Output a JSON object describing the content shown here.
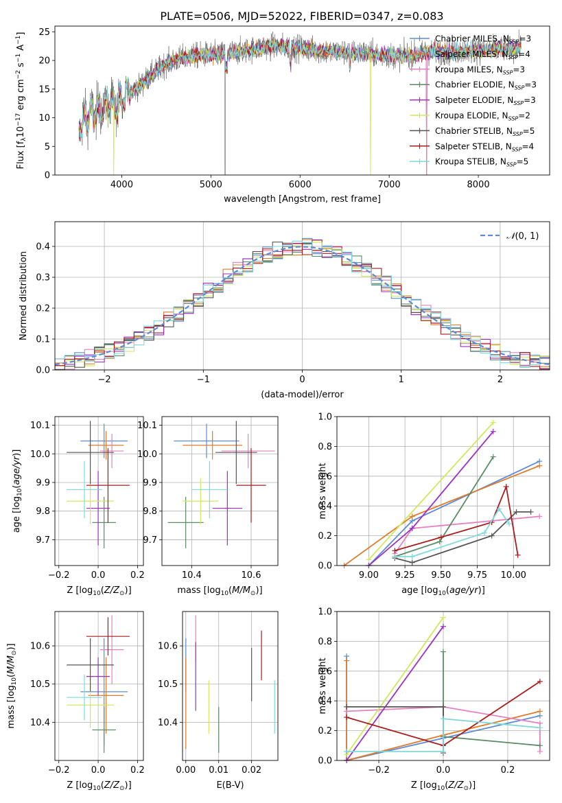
{
  "figure": {
    "title": "PLATE=0506, MJD=52022, FIBERID=0347, z=0.083"
  },
  "series_names": [
    "Chabrier MILES, N_SSP=3",
    "Salpeter MILES, N_SSP=4",
    "Kroupa MILES, N_SSP=3",
    "Chabrier ELODIE, N_SSP=3",
    "Salpeter ELODIE, N_SSP=3",
    "Kroupa ELODIE, N_SSP=2",
    "Chabrier STELIB, N_SSP=5",
    "Salpeter STELIB, N_SSP=4",
    "Kroupa STELIB, N_SSP=5"
  ],
  "colors": [
    "#5b8bd6",
    "#e07b28",
    "#e67fbf",
    "#5a8a66",
    "#9c2fbf",
    "#cfe85a",
    "#555555",
    "#a81c1c",
    "#7fd9dc"
  ],
  "chart_data": [
    {
      "id": "spectrum",
      "type": "line",
      "xlabel": "wavelength [Angstrom, rest frame]",
      "ylabel": "Flux [f_λ 10^-17 erg cm^-2 s^-1 A^-1]",
      "xlim": [
        3250,
        8800
      ],
      "ylim": [
        0,
        26
      ],
      "xticks": [
        4000,
        5000,
        6000,
        7000,
        8000
      ],
      "yticks": [
        0,
        5,
        10,
        15,
        20,
        25
      ],
      "legend": "right",
      "spectrum": {
        "x": [
          3520,
          3650,
          3800,
          3900,
          3950,
          4050,
          4200,
          4300,
          4500,
          4700,
          4900,
          5100,
          5300,
          5500,
          5700,
          5900,
          6100,
          6300,
          6500,
          6700,
          6900,
          7100,
          7300,
          7450,
          7700,
          8000,
          8300,
          8480
        ],
        "y": [
          8.5,
          10.5,
          11.5,
          12.0,
          12.2,
          14.0,
          15.5,
          17.0,
          19.5,
          20.5,
          21.0,
          21.0,
          21.5,
          22.0,
          22.5,
          22.3,
          22.0,
          21.5,
          21.5,
          21.3,
          21.0,
          20.8,
          21.0,
          21.5,
          21.5,
          21.8,
          22.0,
          22.3
        ]
      },
      "dropouts": [
        {
          "series": 0,
          "x": 7420
        },
        {
          "series": 1,
          "x": 7420
        },
        {
          "series": 2,
          "x": 7420
        },
        {
          "series": 5,
          "x": 6790
        },
        {
          "series": 5,
          "x": 3910
        },
        {
          "series": 6,
          "x": 5160
        },
        {
          "series": 7,
          "x": 3510
        }
      ]
    },
    {
      "id": "residuals",
      "type": "line",
      "xlabel": "(data-model)/error",
      "ylabel": "Normed distribution",
      "xlim": [
        -2.5,
        2.5
      ],
      "ylim": [
        0,
        0.48
      ],
      "xticks": [
        -2,
        -1,
        0,
        1,
        2
      ],
      "yticks": [
        0.0,
        0.1,
        0.2,
        0.3,
        0.4
      ],
      "legend_label": "N(0,1)",
      "legend": "top-right",
      "grid": true
    },
    {
      "id": "age_vs_Z",
      "type": "scatter",
      "xlabel": "Z [log10(Z/Z_sun)]",
      "ylabel": "age [log10(age/yr)]",
      "xlim": [
        -0.22,
        0.23
      ],
      "ylim": [
        9.61,
        10.13
      ],
      "xticks": [
        -0.2,
        0.0,
        0.2
      ],
      "yticks": [
        9.7,
        9.8,
        9.9,
        10.0,
        10.1
      ],
      "grid": true,
      "points": [
        {
          "series": 0,
          "x": 0.03,
          "xerr": 0.12,
          "y": 10.045,
          "yerr": 0.06
        },
        {
          "series": 1,
          "x": 0.04,
          "xerr": 0.09,
          "y": 10.03,
          "yerr": 0.05
        },
        {
          "series": 2,
          "x": 0.07,
          "xerr": 0.06,
          "y": 10.01,
          "yerr": 0.06
        },
        {
          "series": 3,
          "x": 0.03,
          "xerr": 0.06,
          "y": 9.76,
          "yerr": 0.09
        },
        {
          "series": 4,
          "x": 0.0,
          "xerr": 0.06,
          "y": 9.81,
          "yerr": 0.13
        },
        {
          "series": 5,
          "x": -0.04,
          "xerr": 0.12,
          "y": 9.835,
          "yerr": 0.08
        },
        {
          "series": 6,
          "x": -0.04,
          "xerr": 0.12,
          "y": 10.005,
          "yerr": 0.11
        },
        {
          "series": 7,
          "x": 0.05,
          "xerr": 0.11,
          "y": 9.89,
          "yerr": 0.13
        },
        {
          "series": 8,
          "x": -0.07,
          "xerr": 0.09,
          "y": 9.875,
          "yerr": 0.1
        }
      ]
    },
    {
      "id": "age_vs_mass",
      "type": "scatter",
      "xlabel": "mass [log10(M/M_sun)]",
      "xlim": [
        10.3,
        10.69
      ],
      "ylim": [
        9.61,
        10.13
      ],
      "xticks": [
        10.4,
        10.6
      ],
      "yticks": [
        9.7,
        9.8,
        9.9,
        10.0,
        10.1
      ],
      "grid": true,
      "points": [
        {
          "series": 0,
          "x": 10.45,
          "xerr": 0.11,
          "y": 10.045,
          "yerr": 0.06
        },
        {
          "series": 1,
          "x": 10.47,
          "xerr": 0.1,
          "y": 10.03,
          "yerr": 0.05
        },
        {
          "series": 2,
          "x": 10.59,
          "xerr": 0.09,
          "y": 10.01,
          "yerr": 0.06
        },
        {
          "series": 3,
          "x": 10.38,
          "xerr": 0.06,
          "y": 9.76,
          "yerr": 0.09
        },
        {
          "series": 4,
          "x": 10.52,
          "xerr": 0.05,
          "y": 9.81,
          "yerr": 0.13
        },
        {
          "series": 5,
          "x": 10.43,
          "xerr": 0.06,
          "y": 9.835,
          "yerr": 0.08
        },
        {
          "series": 6,
          "x": 10.55,
          "xerr": 0.07,
          "y": 10.005,
          "yerr": 0.11
        },
        {
          "series": 7,
          "x": 10.6,
          "xerr": 0.05,
          "y": 9.89,
          "yerr": 0.13
        },
        {
          "series": 8,
          "x": 10.46,
          "xerr": 0.06,
          "y": 9.875,
          "yerr": 0.1
        }
      ]
    },
    {
      "id": "massweight_vs_age",
      "type": "line",
      "xlabel": "age [log10(age/yr)]",
      "ylabel": "mass weight",
      "xlim": [
        8.78,
        10.25
      ],
      "ylim": [
        0,
        1.0
      ],
      "xticks": [
        9.0,
        9.25,
        9.5,
        9.75,
        10.0
      ],
      "yticks": [
        0.0,
        0.2,
        0.4,
        0.6,
        0.8,
        1.0
      ],
      "grid": true,
      "series": [
        {
          "series": 0,
          "x": [
            9.0,
            9.3,
            10.18
          ],
          "y": [
            0.0,
            0.3,
            0.7
          ]
        },
        {
          "series": 1,
          "x": [
            8.83,
            9.3,
            10.18
          ],
          "y": [
            0.0,
            0.33,
            0.67
          ]
        },
        {
          "series": 2,
          "x": [
            9.18,
            9.3,
            10.18
          ],
          "y": [
            0.08,
            0.25,
            0.33
          ]
        },
        {
          "series": 3,
          "x": [
            9.18,
            9.49,
            9.86
          ],
          "y": [
            0.06,
            0.16,
            0.73
          ]
        },
        {
          "series": 4,
          "x": [
            9.0,
            9.3,
            9.86
          ],
          "y": [
            0.0,
            0.25,
            0.9
          ]
        },
        {
          "series": 5,
          "x": [
            9.0,
            9.86
          ],
          "y": [
            0.04,
            0.96
          ]
        },
        {
          "series": 6,
          "x": [
            9.18,
            9.3,
            9.85,
            10.02,
            10.12
          ],
          "y": [
            0.05,
            0.02,
            0.2,
            0.36,
            0.36
          ]
        },
        {
          "series": 7,
          "x": [
            9.18,
            9.5,
            9.85,
            9.95,
            10.03
          ],
          "y": [
            0.1,
            0.19,
            0.29,
            0.53,
            0.07
          ]
        },
        {
          "series": 8,
          "x": [
            9.18,
            9.3,
            9.8,
            9.9,
            9.97
          ],
          "y": [
            0.06,
            0.06,
            0.22,
            0.38,
            0.28
          ]
        }
      ]
    },
    {
      "id": "mass_vs_Z",
      "type": "scatter",
      "xlabel": "Z [log10(Z/Z_sun)]",
      "ylabel": "mass [log10(M/M_sun)]",
      "xlim": [
        -0.22,
        0.23
      ],
      "ylim": [
        10.3,
        10.69
      ],
      "xticks": [
        -0.2,
        0.0,
        0.2
      ],
      "yticks": [
        10.4,
        10.5,
        10.6
      ],
      "grid": true,
      "points": [
        {
          "series": 0,
          "x": 0.03,
          "xerr": 0.12,
          "y": 10.48,
          "yerr": 0.14
        },
        {
          "series": 1,
          "x": 0.04,
          "xerr": 0.09,
          "y": 10.47,
          "yerr": 0.1
        },
        {
          "series": 2,
          "x": 0.07,
          "xerr": 0.06,
          "y": 10.59,
          "yerr": 0.09
        },
        {
          "series": 3,
          "x": 0.03,
          "xerr": 0.06,
          "y": 10.38,
          "yerr": 0.06
        },
        {
          "series": 4,
          "x": 0.0,
          "xerr": 0.06,
          "y": 10.52,
          "yerr": 0.05
        },
        {
          "series": 5,
          "x": -0.04,
          "xerr": 0.12,
          "y": 10.445,
          "yerr": 0.06
        },
        {
          "series": 6,
          "x": -0.04,
          "xerr": 0.12,
          "y": 10.55,
          "yerr": 0.07
        },
        {
          "series": 7,
          "x": 0.05,
          "xerr": 0.11,
          "y": 10.625,
          "yerr": 0.05
        },
        {
          "series": 8,
          "x": -0.07,
          "xerr": 0.09,
          "y": 10.465,
          "yerr": 0.06
        }
      ]
    },
    {
      "id": "ebv_vs_mass",
      "type": "scatter",
      "xlabel": "E(B-V)",
      "xlim": [
        -0.001,
        0.028
      ],
      "ylim": [
        10.3,
        10.69
      ],
      "xticks": [
        0.0,
        0.01,
        0.02
      ],
      "yticks": [
        10.4,
        10.5,
        10.6
      ],
      "grid": true,
      "points": [
        {
          "series": 0,
          "x": 0.0,
          "y": 10.55,
          "yerr": 0.07
        },
        {
          "series": 1,
          "x": 0.0,
          "y": 10.45,
          "yerr": 0.12
        },
        {
          "series": 2,
          "x": 0.003,
          "y": 10.62,
          "yerr": 0.06
        },
        {
          "series": 3,
          "x": 0.01,
          "y": 10.38,
          "yerr": 0.06
        },
        {
          "series": 4,
          "x": 0.003,
          "y": 10.52,
          "yerr": 0.09
        },
        {
          "series": 5,
          "x": 0.007,
          "y": 10.44,
          "yerr": 0.07
        },
        {
          "series": 6,
          "x": 0.02,
          "y": 10.525,
          "yerr": 0.07
        },
        {
          "series": 7,
          "x": 0.023,
          "y": 10.575,
          "yerr": 0.065
        },
        {
          "series": 8,
          "x": 0.027,
          "y": 10.44,
          "yerr": 0.07
        }
      ]
    },
    {
      "id": "massweight_vs_Z",
      "type": "line",
      "xlabel": "Z [log10(Z/Z_sun)]",
      "ylabel": "mass weight",
      "xlim": [
        -0.33,
        0.33
      ],
      "ylim": [
        0,
        1.0
      ],
      "xticks": [
        -0.2,
        0.0,
        0.2
      ],
      "yticks": [
        0.0,
        0.2,
        0.4,
        0.6,
        0.8,
        1.0
      ],
      "grid": true,
      "series": [
        {
          "series": 0,
          "x": [
            -0.3,
            -0.3,
            0.0,
            0.3
          ],
          "y": [
            0.7,
            0.0,
            0.15,
            0.3
          ]
        },
        {
          "series": 1,
          "x": [
            -0.3,
            -0.3,
            0.0,
            0.3
          ],
          "y": [
            0.67,
            0.0,
            0.17,
            0.33
          ]
        },
        {
          "series": 2,
          "x": [
            -0.3,
            0.0,
            0.3,
            0.3
          ],
          "y": [
            0.33,
            0.36,
            0.25,
            0.06
          ]
        },
        {
          "series": 3,
          "x": [
            0.0,
            0.0,
            0.3
          ],
          "y": [
            0.73,
            0.16,
            0.1
          ]
        },
        {
          "series": 4,
          "x": [
            -0.3,
            0.0
          ],
          "y": [
            0.0,
            0.9
          ]
        },
        {
          "series": 5,
          "x": [
            -0.3,
            0.0
          ],
          "y": [
            0.04,
            0.96
          ]
        },
        {
          "series": 6,
          "x": [
            -0.3,
            0.0,
            0.0
          ],
          "y": [
            0.36,
            0.36,
            0.05
          ]
        },
        {
          "series": 7,
          "x": [
            -0.3,
            0.0,
            0.3
          ],
          "y": [
            0.29,
            0.1,
            0.53
          ]
        },
        {
          "series": 8,
          "x": [
            -0.3,
            -0.3,
            0.0,
            0.0,
            0.3
          ],
          "y": [
            0.06,
            0.06,
            0.06,
            0.28,
            0.22
          ]
        }
      ]
    }
  ]
}
